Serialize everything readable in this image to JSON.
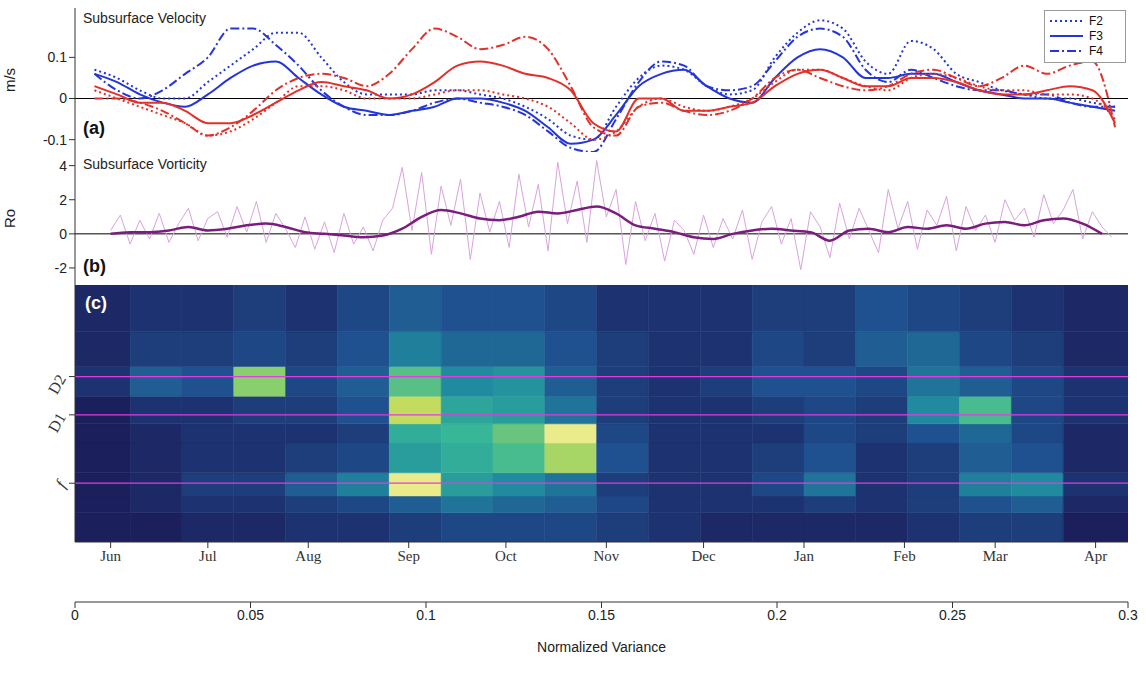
{
  "chart_data": [
    {
      "type": "line",
      "title": "Subsurface Velocity",
      "ylabel": "m/s",
      "annotations": [
        "(a)"
      ],
      "legend": "upper right",
      "grid": false,
      "tick_labels": "y",
      "xlim": [
        -11,
        314
      ],
      "xticks": [
        {
          "value": 0,
          "label": "Jun"
        },
        {
          "value": 30,
          "label": "Jul"
        },
        {
          "value": 61,
          "label": "Aug"
        },
        {
          "value": 92,
          "label": "Sep"
        },
        {
          "value": 122,
          "label": "Oct"
        },
        {
          "value": 153,
          "label": "Nov"
        },
        {
          "value": 183,
          "label": "Dec"
        },
        {
          "value": 214,
          "label": "Jan"
        },
        {
          "value": 245,
          "label": "Feb"
        },
        {
          "value": 273,
          "label": "Mar"
        },
        {
          "value": 304,
          "label": "Apr"
        }
      ],
      "ylim": [
        -0.13,
        0.22
      ],
      "yticks": [
        -0.1,
        0,
        0.1
      ],
      "x": [
        -5,
        2,
        9,
        16,
        23,
        30,
        37,
        44,
        51,
        58,
        65,
        72,
        79,
        86,
        93,
        100,
        107,
        114,
        121,
        128,
        135,
        142,
        149,
        156,
        163,
        170,
        177,
        184,
        191,
        198,
        205,
        212,
        219,
        226,
        233,
        240,
        247,
        254,
        261,
        268,
        275,
        282,
        289,
        296,
        303,
        310
      ],
      "series": [
        {
          "name": "F2",
          "color": "#2536d9",
          "line_style": "dotted",
          "values": [
            0.07,
            0.05,
            0.02,
            0.0,
            0.0,
            0.04,
            0.08,
            0.12,
            0.16,
            0.16,
            0.1,
            0.04,
            0.01,
            0.01,
            0.01,
            0.02,
            0.02,
            0.01,
            0.0,
            -0.02,
            -0.05,
            -0.09,
            -0.1,
            -0.02,
            0.05,
            0.08,
            0.07,
            0.03,
            0.01,
            0.02,
            0.1,
            0.16,
            0.19,
            0.17,
            0.09,
            0.06,
            0.14,
            0.12,
            0.06,
            0.04,
            0.02,
            0.01,
            0.0,
            0.0,
            -0.01,
            -0.02
          ]
        },
        {
          "name": "F3",
          "color": "#2536d9",
          "line_style": "solid",
          "values": [
            0.06,
            0.04,
            0.01,
            -0.01,
            -0.02,
            0.01,
            0.05,
            0.08,
            0.09,
            0.05,
            0.01,
            -0.02,
            -0.03,
            -0.04,
            -0.03,
            -0.02,
            0.0,
            0.0,
            -0.01,
            -0.03,
            -0.07,
            -0.11,
            -0.1,
            -0.04,
            0.03,
            0.06,
            0.07,
            0.03,
            0.0,
            -0.01,
            0.05,
            0.1,
            0.12,
            0.1,
            0.05,
            0.05,
            0.06,
            0.06,
            0.04,
            0.02,
            0.01,
            0.0,
            0.0,
            -0.01,
            -0.02,
            -0.03
          ]
        },
        {
          "name": "F4",
          "color": "#2536d9",
          "line_style": "dashdot",
          "values": [
            0.06,
            0.02,
            0.0,
            0.02,
            0.06,
            0.1,
            0.17,
            0.17,
            0.13,
            0.08,
            0.02,
            -0.02,
            -0.04,
            -0.04,
            -0.03,
            -0.01,
            0.0,
            -0.01,
            -0.02,
            -0.04,
            -0.08,
            -0.12,
            -0.13,
            -0.05,
            0.04,
            0.09,
            0.08,
            0.03,
            0.02,
            0.03,
            0.09,
            0.15,
            0.17,
            0.15,
            0.07,
            0.04,
            0.07,
            0.05,
            0.03,
            0.02,
            0.02,
            0.01,
            0.01,
            -0.01,
            -0.02,
            -0.02
          ]
        },
        {
          "name": "F2",
          "color": "#e2302a",
          "line_style": "dotted",
          "values": [
            0.02,
            0.0,
            -0.02,
            -0.04,
            -0.06,
            -0.09,
            -0.08,
            -0.05,
            -0.01,
            0.03,
            0.03,
            0.02,
            0.0,
            0.0,
            0.0,
            0.01,
            0.02,
            0.02,
            0.01,
            0.0,
            -0.02,
            -0.06,
            -0.1,
            -0.08,
            -0.02,
            0.0,
            -0.02,
            -0.03,
            -0.02,
            0.0,
            0.04,
            0.07,
            0.07,
            0.05,
            0.03,
            0.02,
            0.05,
            0.06,
            0.05,
            0.03,
            0.02,
            0.02,
            0.01,
            0.01,
            0.0,
            -0.05
          ]
        },
        {
          "name": "F3",
          "color": "#e2302a",
          "line_style": "solid",
          "values": [
            0.03,
            0.01,
            -0.01,
            -0.01,
            -0.03,
            -0.06,
            -0.06,
            -0.04,
            -0.01,
            0.02,
            0.04,
            0.03,
            0.02,
            0.0,
            0.01,
            0.04,
            0.08,
            0.09,
            0.08,
            0.06,
            0.05,
            0.02,
            -0.06,
            -0.08,
            0.0,
            0.0,
            -0.03,
            -0.03,
            -0.02,
            -0.01,
            0.03,
            0.06,
            0.07,
            0.05,
            0.03,
            0.03,
            0.05,
            0.05,
            0.04,
            0.02,
            0.01,
            0.01,
            0.02,
            0.03,
            0.02,
            -0.06
          ]
        },
        {
          "name": "F4",
          "color": "#e2302a",
          "line_style": "dashdot",
          "values": [
            0.0,
            0.0,
            -0.01,
            -0.03,
            -0.06,
            -0.09,
            -0.07,
            -0.03,
            0.02,
            0.05,
            0.06,
            0.05,
            0.03,
            0.06,
            0.12,
            0.17,
            0.15,
            0.12,
            0.13,
            0.15,
            0.12,
            0.03,
            -0.07,
            -0.09,
            -0.02,
            -0.01,
            -0.03,
            -0.04,
            -0.03,
            0.0,
            0.05,
            0.07,
            0.05,
            0.03,
            0.02,
            0.03,
            0.06,
            0.07,
            0.05,
            0.03,
            0.05,
            0.08,
            0.06,
            0.08,
            0.09,
            -0.07
          ]
        }
      ]
    },
    {
      "type": "line",
      "title": "Subsurface Vorticity",
      "ylabel": "Ro",
      "annotations": [
        "(b)"
      ],
      "grid": false,
      "tick_labels": "y",
      "xlim": [
        -11,
        314
      ],
      "xticks": [
        {
          "value": 0,
          "label": "Jun"
        },
        {
          "value": 30,
          "label": "Jul"
        },
        {
          "value": 61,
          "label": "Aug"
        },
        {
          "value": 92,
          "label": "Sep"
        },
        {
          "value": 122,
          "label": "Oct"
        },
        {
          "value": 153,
          "label": "Nov"
        },
        {
          "value": 183,
          "label": "Dec"
        },
        {
          "value": 214,
          "label": "Jan"
        },
        {
          "value": 245,
          "label": "Feb"
        },
        {
          "value": 273,
          "label": "Mar"
        },
        {
          "value": 304,
          "label": "Apr"
        }
      ],
      "ylim": [
        -3,
        4.8
      ],
      "yticks": [
        -2,
        0,
        2,
        4
      ],
      "series": [
        {
          "color": "#d9a3dc",
          "line_style": "solid",
          "x": [
            0,
            3,
            6,
            9,
            12,
            15,
            18,
            21,
            24,
            27,
            30,
            33,
            36,
            39,
            42,
            45,
            48,
            51,
            54,
            57,
            60,
            63,
            66,
            69,
            72,
            75,
            78,
            81,
            84,
            87,
            90,
            93,
            96,
            99,
            102,
            105,
            108,
            111,
            114,
            117,
            120,
            123,
            126,
            129,
            132,
            135,
            138,
            141,
            144,
            147,
            150,
            153,
            156,
            159,
            162,
            165,
            168,
            171,
            174,
            177,
            180,
            183,
            186,
            189,
            192,
            195,
            198,
            201,
            204,
            207,
            210,
            213,
            216,
            219,
            222,
            225,
            228,
            231,
            234,
            237,
            240,
            243,
            246,
            249,
            252,
            255,
            258,
            261,
            264,
            267,
            270,
            273,
            276,
            279,
            282,
            285,
            288,
            291,
            294,
            297,
            300,
            303,
            306,
            309
          ],
          "values": [
            0.2,
            1.1,
            -0.6,
            0.8,
            -0.3,
            1.2,
            -0.5,
            0.6,
            1.5,
            -0.4,
            0.9,
            1.3,
            -0.2,
            1.6,
            0.1,
            1.9,
            -0.5,
            1.2,
            0.3,
            -0.8,
            1,
            -0.9,
            0.7,
            -1.1,
            1.2,
            -0.6,
            0.4,
            -1,
            0.8,
            1.5,
            3.9,
            0.2,
            3.6,
            -1.2,
            2.8,
            0.5,
            3.2,
            -1.5,
            2.4,
            0.1,
            1.9,
            -0.8,
            3.5,
            0.4,
            2.9,
            -1,
            4.2,
            0.6,
            3.1,
            -0.5,
            4.3,
            1,
            2.6,
            -1.8,
            1.9,
            -0.4,
            1.2,
            -1.6,
            0.8,
            0.2,
            -1.2,
            1.1,
            -0.8,
            0.9,
            -0.3,
            1.4,
            -1.5,
            0.7,
            1.6,
            -0.6,
            0.9,
            -2.1,
            1.3,
            0.4,
            -1.4,
            1.8,
            -0.3,
            1.5,
            0.2,
            -1.1,
            2.6,
            0.3,
            1.9,
            -0.9,
            1.4,
            0.5,
            2.2,
            -1,
            1.6,
            0.2,
            1.1,
            -0.5,
            2,
            0.8,
            1.5,
            -0.2,
            2.3,
            0.6,
            1.4,
            2.6,
            -0.3,
            1.3,
            0.4,
            -0.2
          ]
        },
        {
          "color": "#7b1d7e",
          "line_style": "solid",
          "x": [
            0,
            6,
            12,
            18,
            24,
            30,
            36,
            42,
            48,
            54,
            60,
            66,
            72,
            78,
            84,
            90,
            96,
            102,
            108,
            114,
            120,
            126,
            132,
            138,
            144,
            150,
            156,
            162,
            168,
            174,
            180,
            186,
            192,
            198,
            204,
            210,
            216,
            222,
            228,
            234,
            240,
            246,
            252,
            258,
            264,
            270,
            276,
            282,
            288,
            294,
            300,
            306
          ],
          "values": [
            0,
            0.1,
            0.1,
            0.2,
            0.4,
            0.2,
            0.3,
            0.5,
            0.6,
            0.4,
            0.1,
            0,
            -0.1,
            -0.2,
            -0.1,
            0.3,
            1,
            1.4,
            1.2,
            0.9,
            0.8,
            1,
            1.3,
            1.2,
            1.4,
            1.6,
            1.2,
            0.5,
            0.3,
            0.1,
            -0.2,
            -0.3,
            0,
            0.2,
            0.3,
            0.2,
            0.1,
            -0.4,
            0.2,
            0.3,
            0.1,
            0.4,
            0.3,
            0.5,
            0.3,
            0.6,
            0.7,
            0.5,
            0.8,
            0.9,
            0.6,
            0
          ]
        }
      ]
    },
    {
      "type": "heatmap",
      "annotations": [
        "(c)"
      ],
      "log": "y",
      "grid": false,
      "xlim": [
        -11,
        314
      ],
      "xticks": [
        {
          "value": 0,
          "label": "Jun"
        },
        {
          "value": 30,
          "label": "Jul"
        },
        {
          "value": 61,
          "label": "Aug"
        },
        {
          "value": 92,
          "label": "Sep"
        },
        {
          "value": 122,
          "label": "Oct"
        },
        {
          "value": 153,
          "label": "Nov"
        },
        {
          "value": 183,
          "label": "Dec"
        },
        {
          "value": 214,
          "label": "Jan"
        },
        {
          "value": 245,
          "label": "Feb"
        },
        {
          "value": 273,
          "label": "Mar"
        },
        {
          "value": 304,
          "label": "Apr"
        }
      ],
      "ylim": [
        0.1,
        10.5
      ],
      "yticks": [
        {
          "value": 0.29,
          "label": "f"
        },
        {
          "value": 1,
          "label": "D1"
        },
        {
          "value": 2,
          "label": "D2"
        }
      ],
      "x_edges": [
        -11,
        6,
        22,
        38,
        54,
        70,
        86,
        102,
        118,
        134,
        150,
        166,
        182,
        198,
        214,
        230,
        246,
        262,
        278,
        294,
        314
      ],
      "y_edges": [
        0.1,
        0.17,
        0.23,
        0.35,
        0.6,
        0.85,
        1.4,
        2.4,
        4.5,
        10.5
      ],
      "values": [
        [
          0,
          0,
          0.01,
          0.01,
          0.02,
          0.02,
          0.03,
          0.04,
          0.04,
          0.04,
          0.03,
          0.02,
          0.01,
          0.01,
          0.01,
          0.01,
          0.02,
          0.03,
          0.03,
          0
        ],
        [
          0,
          0.01,
          0.02,
          0.02,
          0.03,
          0.04,
          0.06,
          0.08,
          0.07,
          0.06,
          0.04,
          0.02,
          0.02,
          0.02,
          0.03,
          0.02,
          0.03,
          0.05,
          0.06,
          0.01
        ],
        [
          0,
          0.01,
          0.03,
          0.03,
          0.06,
          0.09,
          0.28,
          0.12,
          0.1,
          0.08,
          0.03,
          0.02,
          0.02,
          0.04,
          0.08,
          0.02,
          0.03,
          0.09,
          0.1,
          0.02
        ],
        [
          0,
          0.01,
          0.02,
          0.02,
          0.03,
          0.04,
          0.12,
          0.14,
          0.16,
          0.22,
          0.05,
          0.02,
          0.02,
          0.03,
          0.05,
          0.02,
          0.03,
          0.06,
          0.05,
          0.01
        ],
        [
          0,
          0.01,
          0.02,
          0.02,
          0.02,
          0.03,
          0.14,
          0.15,
          0.18,
          0.28,
          0.04,
          0.02,
          0.02,
          0.02,
          0.04,
          0.03,
          0.05,
          0.07,
          0.04,
          0.01
        ],
        [
          0,
          0.02,
          0.02,
          0.03,
          0.03,
          0.05,
          0.24,
          0.13,
          0.12,
          0.08,
          0.03,
          0.02,
          0.02,
          0.03,
          0.04,
          0.03,
          0.1,
          0.16,
          0.04,
          0.02
        ],
        [
          0.02,
          0.06,
          0.05,
          0.2,
          0.04,
          0.06,
          0.17,
          0.1,
          0.11,
          0.06,
          0.03,
          0.02,
          0.03,
          0.05,
          0.05,
          0.04,
          0.08,
          0.06,
          0.04,
          0.02
        ],
        [
          0.01,
          0.03,
          0.03,
          0.04,
          0.03,
          0.05,
          0.09,
          0.07,
          0.07,
          0.05,
          0.03,
          0.02,
          0.02,
          0.04,
          0.03,
          0.06,
          0.07,
          0.04,
          0.03,
          0.01
        ],
        [
          0.01,
          0.02,
          0.02,
          0.03,
          0.02,
          0.04,
          0.06,
          0.05,
          0.05,
          0.04,
          0.02,
          0.02,
          0.02,
          0.03,
          0.03,
          0.05,
          0.04,
          0.03,
          0.02,
          0.01
        ]
      ],
      "colorbar": {
        "label": "Normalized Variance",
        "lim": [
          0,
          0.3
        ],
        "ticks": [
          0,
          0.05,
          0.1,
          0.15,
          0.2,
          0.25,
          0.3
        ]
      }
    }
  ]
}
